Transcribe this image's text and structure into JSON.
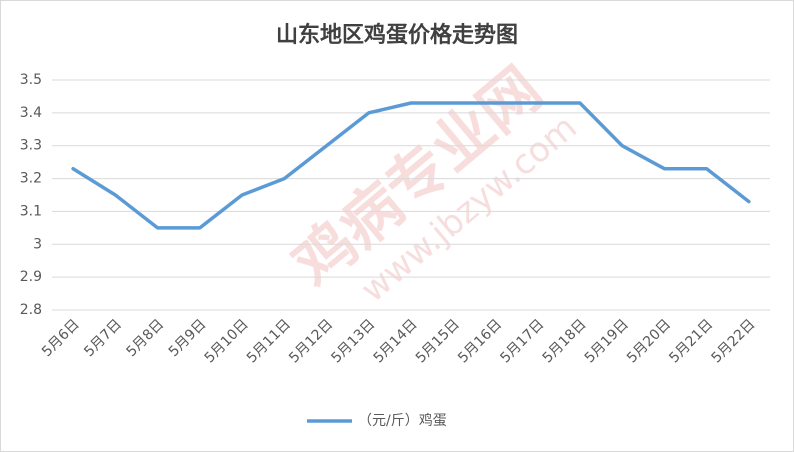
{
  "chart_data": {
    "type": "line",
    "title": "山东地区鸡蛋价格走势图",
    "categories": [
      "5月6日",
      "5月7日",
      "5月8日",
      "5月9日",
      "5月10日",
      "5月11日",
      "5月12日",
      "5月13日",
      "5月14日",
      "5月15日",
      "5月16日",
      "5月17日",
      "5月18日",
      "5月19日",
      "5月20日",
      "5月21日",
      "5月22日"
    ],
    "series": [
      {
        "name": "（元/斤）鸡蛋",
        "color": "#5b9bd5",
        "values": [
          3.23,
          3.15,
          3.05,
          3.05,
          3.15,
          3.2,
          3.3,
          3.4,
          3.43,
          3.43,
          3.43,
          3.43,
          3.43,
          3.3,
          3.23,
          3.23,
          3.13
        ]
      }
    ],
    "ylim": [
      2.8,
      3.5
    ],
    "yticks": [
      2.8,
      2.9,
      3,
      3.1,
      3.2,
      3.3,
      3.4,
      3.5
    ],
    "grid": true,
    "legend": "bottom",
    "watermark": [
      "鸡病专业网",
      "www.jbzyw.com"
    ]
  }
}
